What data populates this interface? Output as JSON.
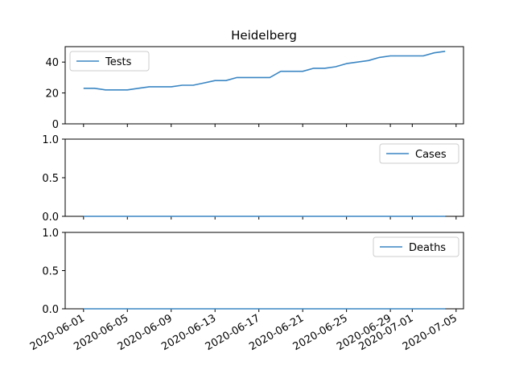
{
  "chart_data": {
    "type": "line",
    "title": "Heidelberg",
    "line_color": "#3a86c3",
    "x": [
      "2020-06-01",
      "2020-06-02",
      "2020-06-03",
      "2020-06-04",
      "2020-06-05",
      "2020-06-06",
      "2020-06-07",
      "2020-06-08",
      "2020-06-09",
      "2020-06-10",
      "2020-06-11",
      "2020-06-12",
      "2020-06-13",
      "2020-06-14",
      "2020-06-15",
      "2020-06-16",
      "2020-06-17",
      "2020-06-18",
      "2020-06-19",
      "2020-06-20",
      "2020-06-21",
      "2020-06-22",
      "2020-06-23",
      "2020-06-24",
      "2020-06-25",
      "2020-06-26",
      "2020-06-27",
      "2020-06-28",
      "2020-06-29",
      "2020-06-30",
      "2020-07-01",
      "2020-07-02",
      "2020-07-03",
      "2020-07-04"
    ],
    "x_ticks": [
      "2020-06-01",
      "2020-06-05",
      "2020-06-09",
      "2020-06-13",
      "2020-06-17",
      "2020-06-21",
      "2020-06-25",
      "2020-06-29",
      "2020-07-01",
      "2020-07-05"
    ],
    "panels": [
      {
        "legend": "Tests",
        "legend_position": "upper left",
        "ylim": [
          0,
          50
        ],
        "y_ticks": [
          "0",
          "20",
          "40"
        ],
        "y_tick_values": [
          0,
          20,
          40
        ],
        "values": [
          23,
          23,
          22,
          22,
          22,
          23,
          24,
          24,
          24,
          25,
          25,
          26.5,
          28,
          28,
          30,
          30,
          30,
          30,
          34,
          34,
          34,
          36,
          36,
          37,
          39,
          40,
          41,
          43,
          44,
          44,
          44,
          44,
          46,
          47
        ]
      },
      {
        "legend": "Cases",
        "legend_position": "upper right",
        "ylim": [
          0,
          1
        ],
        "y_ticks": [
          "0.0",
          "0.5",
          "1.0"
        ],
        "y_tick_values": [
          0,
          0.5,
          1
        ],
        "values": [
          0,
          0,
          0,
          0,
          0,
          0,
          0,
          0,
          0,
          0,
          0,
          0,
          0,
          0,
          0,
          0,
          0,
          0,
          0,
          0,
          0,
          0,
          0,
          0,
          0,
          0,
          0,
          0,
          0,
          0,
          0,
          0,
          0,
          0
        ]
      },
      {
        "legend": "Deaths",
        "legend_position": "upper right",
        "ylim": [
          0,
          1
        ],
        "y_ticks": [
          "0.0",
          "0.5",
          "1.0"
        ],
        "y_tick_values": [
          0,
          0.5,
          1
        ],
        "values": [
          0,
          0,
          0,
          0,
          0,
          0,
          0,
          0,
          0,
          0,
          0,
          0,
          0,
          0,
          0,
          0,
          0,
          0,
          0,
          0,
          0,
          0,
          0,
          0,
          0,
          0,
          0,
          0,
          0,
          0,
          0,
          0,
          0,
          0
        ]
      }
    ]
  }
}
